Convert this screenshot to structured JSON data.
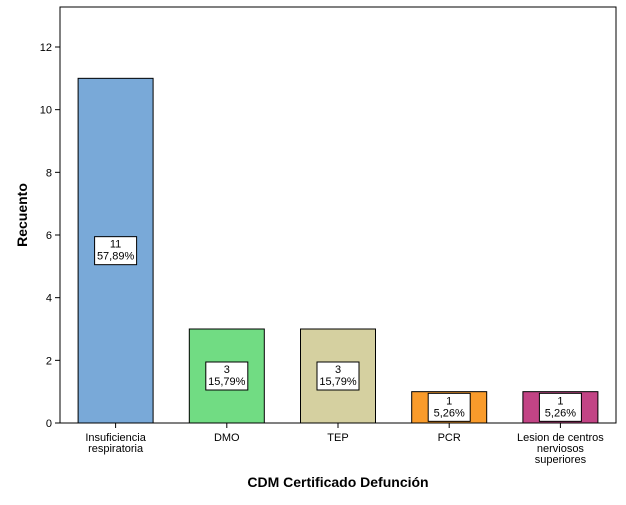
{
  "chart_data": {
    "type": "bar",
    "xlabel": "CDM Certificado Defunción",
    "ylabel": "Recuento",
    "ylim": [
      0,
      13
    ],
    "yticks": [
      0,
      2,
      4,
      6,
      8,
      10,
      12
    ],
    "grid": false,
    "legend": "none",
    "categories": [
      [
        "Insuficiencia",
        "respiratoria"
      ],
      [
        "DMO"
      ],
      [
        "TEP"
      ],
      [
        "PCR"
      ],
      [
        "Lesion de centros",
        "nerviosos",
        "superiores"
      ]
    ],
    "values": [
      11,
      3,
      3,
      1,
      1
    ],
    "labels": [
      [
        "11",
        "57,89%"
      ],
      [
        "3",
        "15,79%"
      ],
      [
        "3",
        "15,79%"
      ],
      [
        "1",
        "5,26%"
      ],
      [
        "1",
        "5,26%"
      ]
    ],
    "colors": [
      "#79a9d8",
      "#71dc83",
      "#d5d0a0",
      "#f99b2b",
      "#c24485"
    ]
  }
}
